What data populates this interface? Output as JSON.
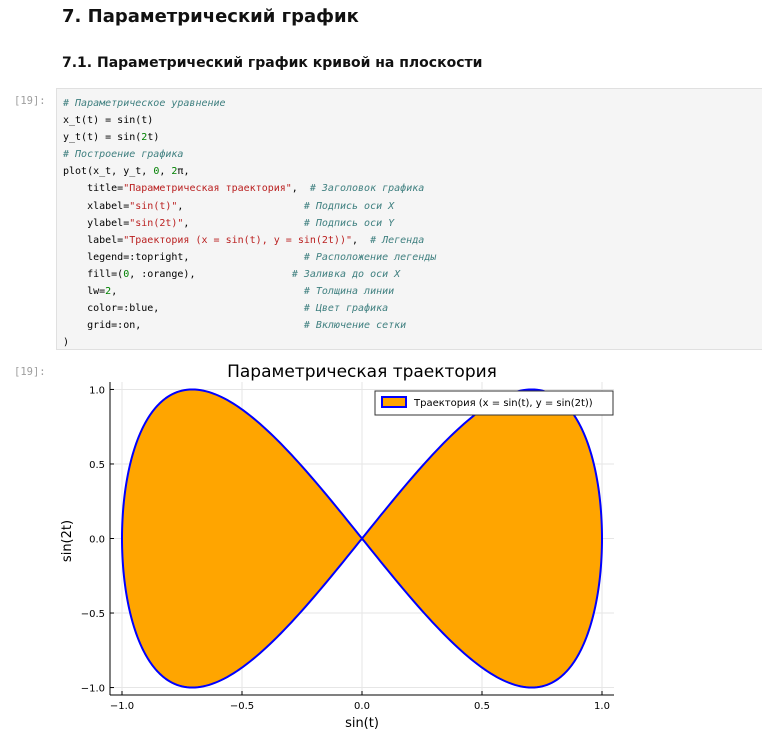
{
  "headings": {
    "h2": "7. Параметрический график",
    "h3": "7.1. Параметрический график кривой на плоскости"
  },
  "cell": {
    "input_prompt": "[19]:",
    "output_prompt": "[19]:",
    "code_lines": [
      [
        {
          "t": "# Параметрическое уравнение",
          "c": "cm"
        }
      ],
      [
        {
          "t": "x_t(t) = sin(t)"
        }
      ],
      [
        {
          "t": "y_t(t) = sin("
        },
        {
          "t": "2",
          "c": "num"
        },
        {
          "t": "t)"
        }
      ],
      [
        {
          "t": "# Построение графика",
          "c": "cm"
        }
      ],
      [
        {
          "t": "plot(x_t, y_t, "
        },
        {
          "t": "0",
          "c": "num"
        },
        {
          "t": ", "
        },
        {
          "t": "2",
          "c": "num"
        },
        {
          "t": "π,"
        }
      ],
      [
        {
          "t": "    title="
        },
        {
          "t": "\"Параметрическая траектория\"",
          "c": "str"
        },
        {
          "t": ",  "
        },
        {
          "t": "# Заголовок графика",
          "c": "cm"
        }
      ],
      [
        {
          "t": "    xlabel="
        },
        {
          "t": "\"sin(t)\"",
          "c": "str"
        },
        {
          "t": ",                    "
        },
        {
          "t": "# Подпись оси X",
          "c": "cm"
        }
      ],
      [
        {
          "t": "    ylabel="
        },
        {
          "t": "\"sin(2t)\"",
          "c": "str"
        },
        {
          "t": ",                   "
        },
        {
          "t": "# Подпись оси Y",
          "c": "cm"
        }
      ],
      [
        {
          "t": "    label="
        },
        {
          "t": "\"Траектория (x = sin(t), y = sin(2t))\"",
          "c": "str"
        },
        {
          "t": ",  "
        },
        {
          "t": "# Легенда",
          "c": "cm"
        }
      ],
      [
        {
          "t": "    legend=:topright,                   "
        },
        {
          "t": "# Расположение легенды",
          "c": "cm"
        }
      ],
      [
        {
          "t": "    fill=("
        },
        {
          "t": "0",
          "c": "num"
        },
        {
          "t": ", :orange),                "
        },
        {
          "t": "# Заливка до оси X",
          "c": "cm"
        }
      ],
      [
        {
          "t": "    lw="
        },
        {
          "t": "2",
          "c": "num"
        },
        {
          "t": ",                               "
        },
        {
          "t": "# Толщина линии",
          "c": "cm"
        }
      ],
      [
        {
          "t": "    color=:blue,                        "
        },
        {
          "t": "# Цвет графика",
          "c": "cm"
        }
      ],
      [
        {
          "t": "    grid=:on,                           "
        },
        {
          "t": "# Включение сетки",
          "c": "cm"
        }
      ],
      [
        {
          "t": ")"
        }
      ]
    ]
  },
  "chart_data": {
    "type": "line",
    "title": "Параметрическая траектория",
    "xlabel": "sin(t)",
    "ylabel": "sin(2t)",
    "xlim": [
      -1.05,
      1.05
    ],
    "ylim": [
      -1.05,
      1.05
    ],
    "xticks": [
      -1.0,
      -0.5,
      0.0,
      0.5,
      1.0
    ],
    "yticks": [
      -1.0,
      -0.5,
      0.0,
      0.5,
      1.0
    ],
    "xtick_labels": [
      "−1.0",
      "−0.5",
      "0.0",
      "0.5",
      "1.0"
    ],
    "ytick_labels": [
      "−1.0",
      "−0.5",
      "0.0",
      "0.5",
      "1.0"
    ],
    "grid": true,
    "legend_position": "top-right",
    "series": [
      {
        "name": "Траектория (x = sin(t), y = sin(2t))",
        "parametric": {
          "x": "sin(t)",
          "y": "sin(2t)",
          "t_range": [
            0,
            6.283185
          ]
        },
        "line_color": "#0000ff",
        "fill_color": "#ffa500",
        "line_width": 2
      }
    ]
  }
}
